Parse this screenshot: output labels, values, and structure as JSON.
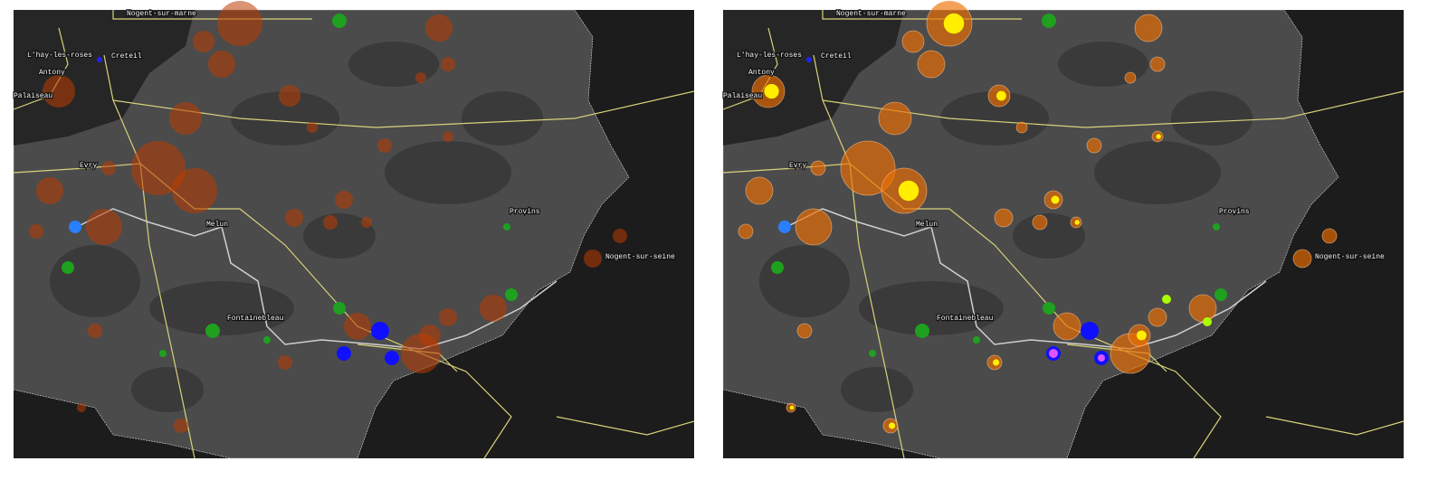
{
  "panels": [
    {
      "labels": [
        "Nogent-sur-marne",
        "L'hay-les-roses",
        "Creteil",
        "Antony",
        "Palaiseau",
        "Evry",
        "Melun",
        "Provins",
        "Nogent-sur-seine",
        "Fontainebleau"
      ]
    },
    {
      "labels": [
        "Nogent-sur-marne",
        "L'hay-les-roses",
        "Creteil",
        "Antony",
        "Palaiseau",
        "Evry",
        "Melun",
        "Provins",
        "Nogent-sur-seine",
        "Fontainebleau"
      ]
    }
  ]
}
